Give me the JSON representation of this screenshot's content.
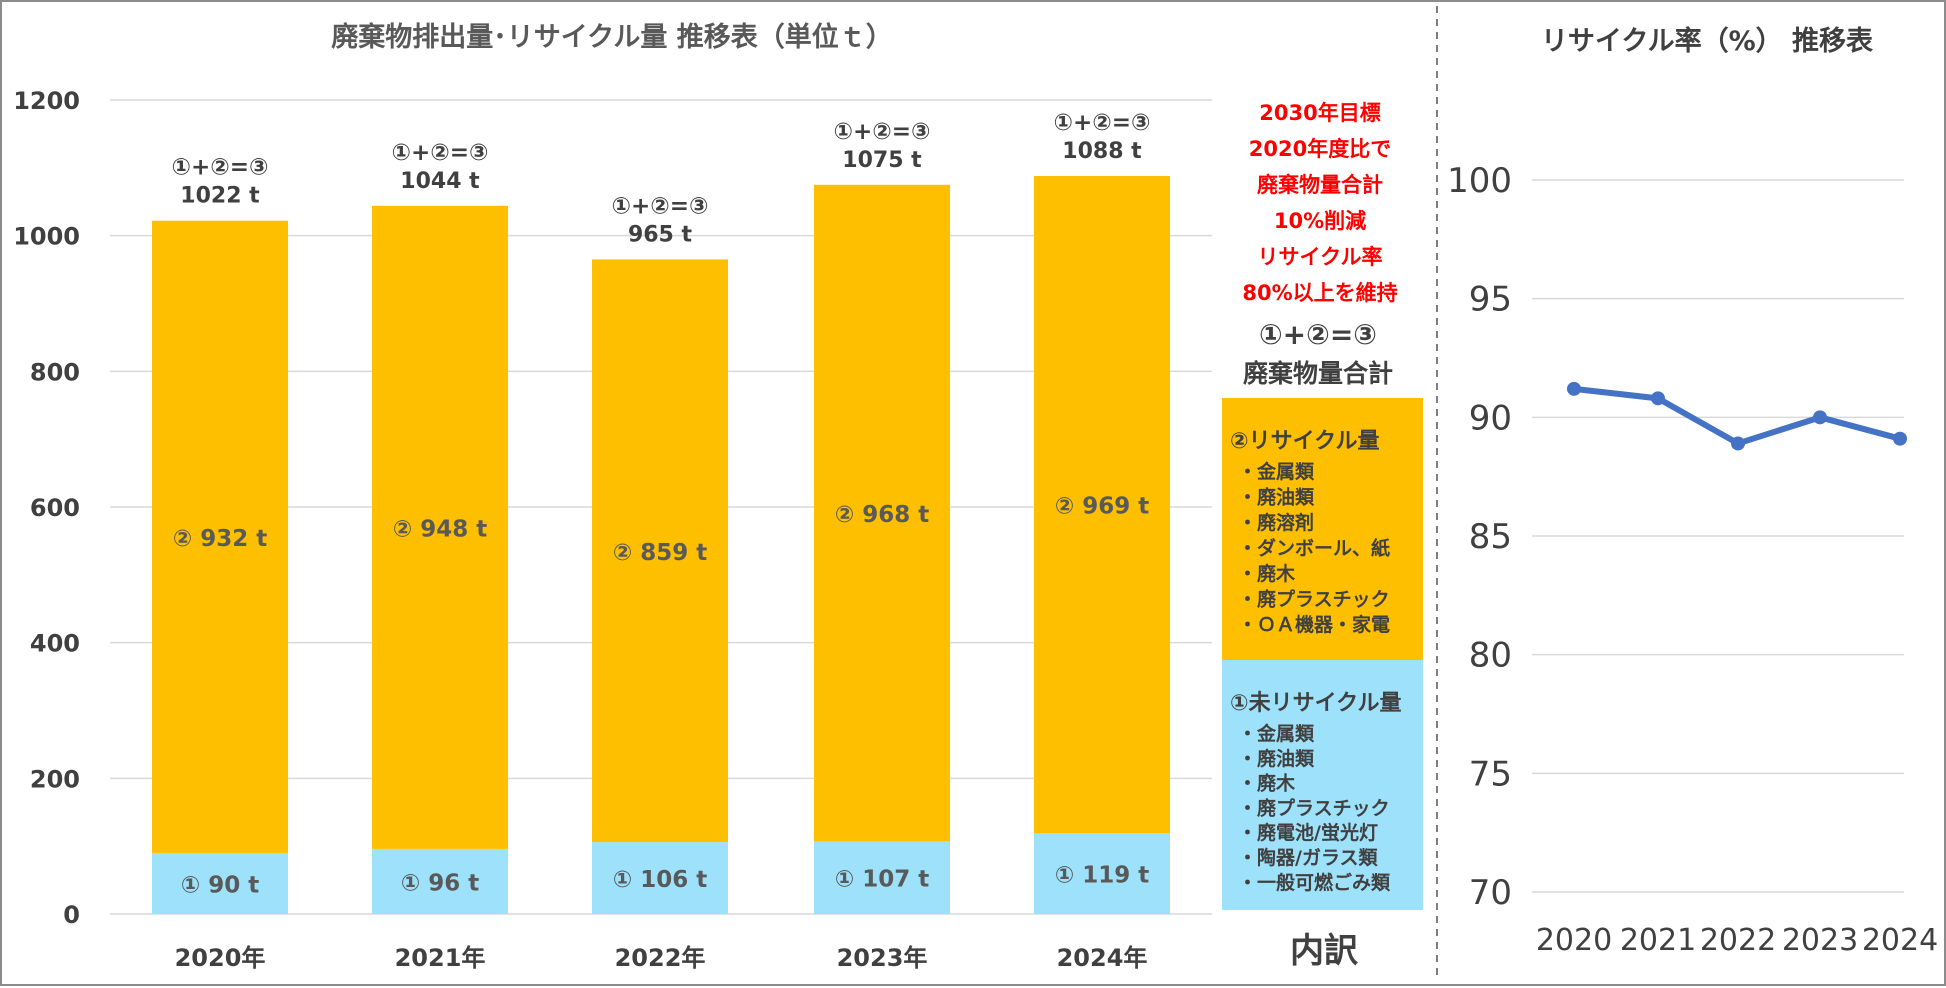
{
  "chart_data": [
    {
      "type": "bar",
      "stacked": true,
      "title": "廃棄物排出量･リサイクル量 推移表（単位ｔ）",
      "categories": [
        "2020年",
        "2021年",
        "2022年",
        "2023年",
        "2024年"
      ],
      "ylim": [
        0,
        1200
      ],
      "yticks": [
        "0",
        "200",
        "400",
        "600",
        "800",
        "1000",
        "1200"
      ],
      "grid": true,
      "colors": {
        "unrecycled": "#9ee1fb",
        "recycled": "#fdbf00"
      },
      "series": [
        {
          "key": "unrecycled",
          "values": [
            90,
            96,
            106,
            107,
            119
          ],
          "labels": [
            "① 90 t",
            "① 96 t",
            "① 106 t",
            "① 107 t",
            "① 119 t"
          ]
        },
        {
          "key": "recycled",
          "values": [
            932,
            948,
            859,
            968,
            969
          ],
          "labels": [
            "② 932 t",
            "② 948 t",
            "② 859 t",
            "② 968 t",
            "② 969 t"
          ]
        }
      ],
      "totals": [
        1022,
        1044,
        965,
        1075,
        1088
      ],
      "total_labels": [
        "1022 t",
        "1044 t",
        "965 t",
        "1075 t",
        "1088 t"
      ],
      "formula": "①+②=③",
      "target_lines": [
        "2030年目標",
        "2020年度比で",
        "廃棄物量合計",
        "10%削減",
        "リサイクル率",
        "80%以上を維持"
      ],
      "legend": {
        "formula": "①+②=③",
        "total_label": "廃棄物量合計",
        "recycled_heading": "②リサイクル量",
        "recycled_items": [
          "・金属類",
          "・廃油類",
          "・廃溶剤",
          "・ダンボール、紙",
          "・廃木",
          "・廃プラスチック",
          "・ＯＡ機器・家電"
        ],
        "unrecycled_heading": "①未リサイクル量",
        "unrecycled_items": [
          "・金属類",
          "・廃油類",
          "・廃木",
          "・廃プラスチック",
          "・廃電池/蛍光灯",
          "・陶器/ガラス類",
          "・一般可燃ごみ類"
        ],
        "footer": "内訳"
      }
    },
    {
      "type": "line",
      "title": "リサイクル率（%） 推移表",
      "x": [
        "2020",
        "2021",
        "2022",
        "2023",
        "2024"
      ],
      "values": [
        91.2,
        90.8,
        88.9,
        90.0,
        89.1
      ],
      "ylim": [
        70,
        100
      ],
      "yticks": [
        "70",
        "75",
        "80",
        "85",
        "90",
        "95",
        "100"
      ],
      "grid": true,
      "color": "#4472c4"
    }
  ]
}
